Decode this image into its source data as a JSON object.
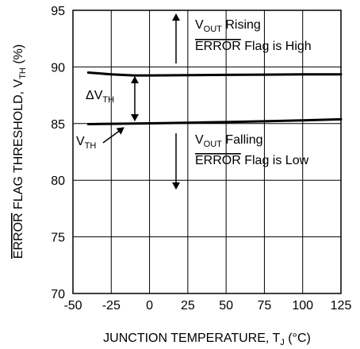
{
  "chart_data": {
    "type": "line",
    "xlabel_main": "JUNCTION TEMPERATURE, T",
    "xlabel_sub": "J",
    "xlabel_tail": " (°C)",
    "ylabel_over": "ERROR",
    "ylabel_mid": " FLAG THRESHOLD, V",
    "ylabel_sub": "TH",
    "ylabel_tail": " (%)",
    "xlim": [
      -50,
      125
    ],
    "ylim": [
      70,
      95
    ],
    "xticks": [
      -50,
      -25,
      0,
      25,
      50,
      75,
      100,
      125
    ],
    "yticks": [
      70,
      75,
      80,
      85,
      90,
      95
    ],
    "grid": true,
    "series": [
      {
        "x": [
          -40,
          -25,
          -10,
          0,
          25,
          50,
          75,
          100,
          125
        ],
        "values": [
          89.5,
          89.35,
          89.25,
          89.25,
          89.28,
          89.3,
          89.32,
          89.34,
          89.35
        ]
      },
      {
        "x": [
          -40,
          -25,
          0,
          25,
          50,
          75,
          100,
          125
        ],
        "values": [
          84.95,
          84.98,
          85.02,
          85.08,
          85.13,
          85.2,
          85.28,
          85.38
        ]
      }
    ],
    "annotations": {
      "rising_v": "V",
      "rising_sub": "OUT",
      "rising_text": " Rising",
      "high_over": "ERROR",
      "high_text": " Flag is High",
      "falling_v": "V",
      "falling_sub": "OUT",
      "falling_text": " Falling",
      "low_over": "ERROR",
      "low_text": " Flag is Low",
      "delta": "ΔV",
      "delta_sub": "TH",
      "vth": "V",
      "vth_sub": "TH"
    }
  }
}
